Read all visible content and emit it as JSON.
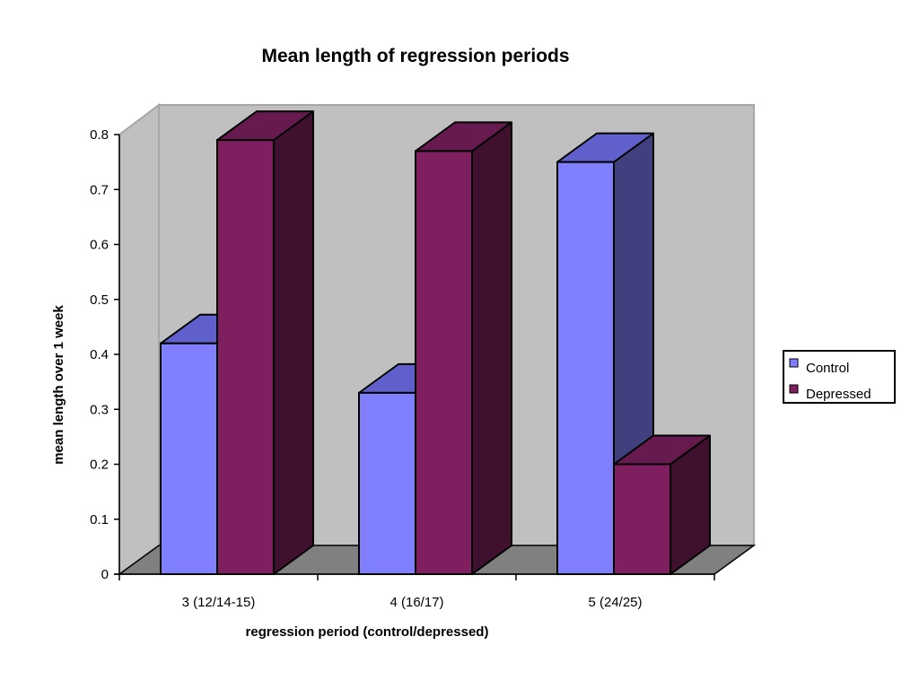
{
  "chart_data": {
    "type": "bar",
    "title": "Mean length of regression periods",
    "xlabel": "regression period (control/depressed)",
    "ylabel": "mean length over 1 week",
    "categories": [
      "3 (12/14-15)",
      "4 (16/17)",
      "5 (24/25)"
    ],
    "series": [
      {
        "name": "Control",
        "values": [
          0.42,
          0.33,
          0.75
        ]
      },
      {
        "name": "Depressed",
        "values": [
          0.79,
          0.77,
          0.2
        ]
      }
    ],
    "ylim": [
      0,
      0.8
    ],
    "yticks": [
      "0",
      "0.1",
      "0.2",
      "0.3",
      "0.4",
      "0.5",
      "0.6",
      "0.7",
      "0.8"
    ],
    "grid": false,
    "three_d": true,
    "legend_position": "right",
    "colors": {
      "series": [
        "#8080ff",
        "#7f1f5f"
      ],
      "series_top": [
        "#6060cc",
        "#661a4e"
      ],
      "series_side": [
        "#40407f",
        "#40102f"
      ],
      "wall": "#c0c0c0",
      "floor": "#808080"
    }
  }
}
